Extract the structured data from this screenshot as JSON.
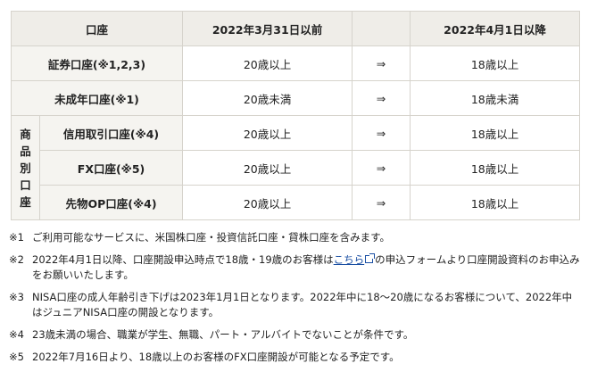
{
  "table": {
    "headers": {
      "account": "口座",
      "before": "2022年3月31日以前",
      "after": "2022年4月1日以降"
    },
    "arrow": "⇒",
    "group_label": [
      "商",
      "品",
      "別",
      "口",
      "座"
    ],
    "rows": [
      {
        "label": "証券口座(※1,2,3)",
        "before": "20歳以上",
        "after": "18歳以上"
      },
      {
        "label": "未成年口座(※1)",
        "before": "20歳未満",
        "after": "18歳未満"
      },
      {
        "label": "信用取引口座(※4)",
        "before": "20歳以上",
        "after": "18歳以上"
      },
      {
        "label": "FX口座(※5)",
        "before": "20歳以上",
        "after": "18歳以上"
      },
      {
        "label": "先物OP口座(※4)",
        "before": "20歳以上",
        "after": "18歳以上"
      }
    ]
  },
  "notes": {
    "n1": {
      "mark": "※1",
      "text": "ご利用可能なサービスに、米国株口座・投資信託口座・貸株口座を含みます。"
    },
    "n2": {
      "mark": "※2",
      "text_before": "2022年4月1日以降、口座開設申込時点で18歳・19歳のお客様は",
      "link": "こちら",
      "text_after": "の申込フォームより口座開設資料のお申込みをお願いいたします。"
    },
    "n3": {
      "mark": "※3",
      "text": "NISA口座の成人年齢引き下げは2023年1月1日となります。2022年中に18〜20歳になるお客様について、2022年中はジュニアNISA口座の開設となります。"
    },
    "n4": {
      "mark": "※4",
      "text": "23歳未満の場合、職業が学生、無職、パート・アルバイトでないことが条件です。"
    },
    "n5": {
      "mark": "※5",
      "text": "2022年7月16日より、18歳以上のお客様のFX口座開設が可能となる予定です。"
    }
  }
}
